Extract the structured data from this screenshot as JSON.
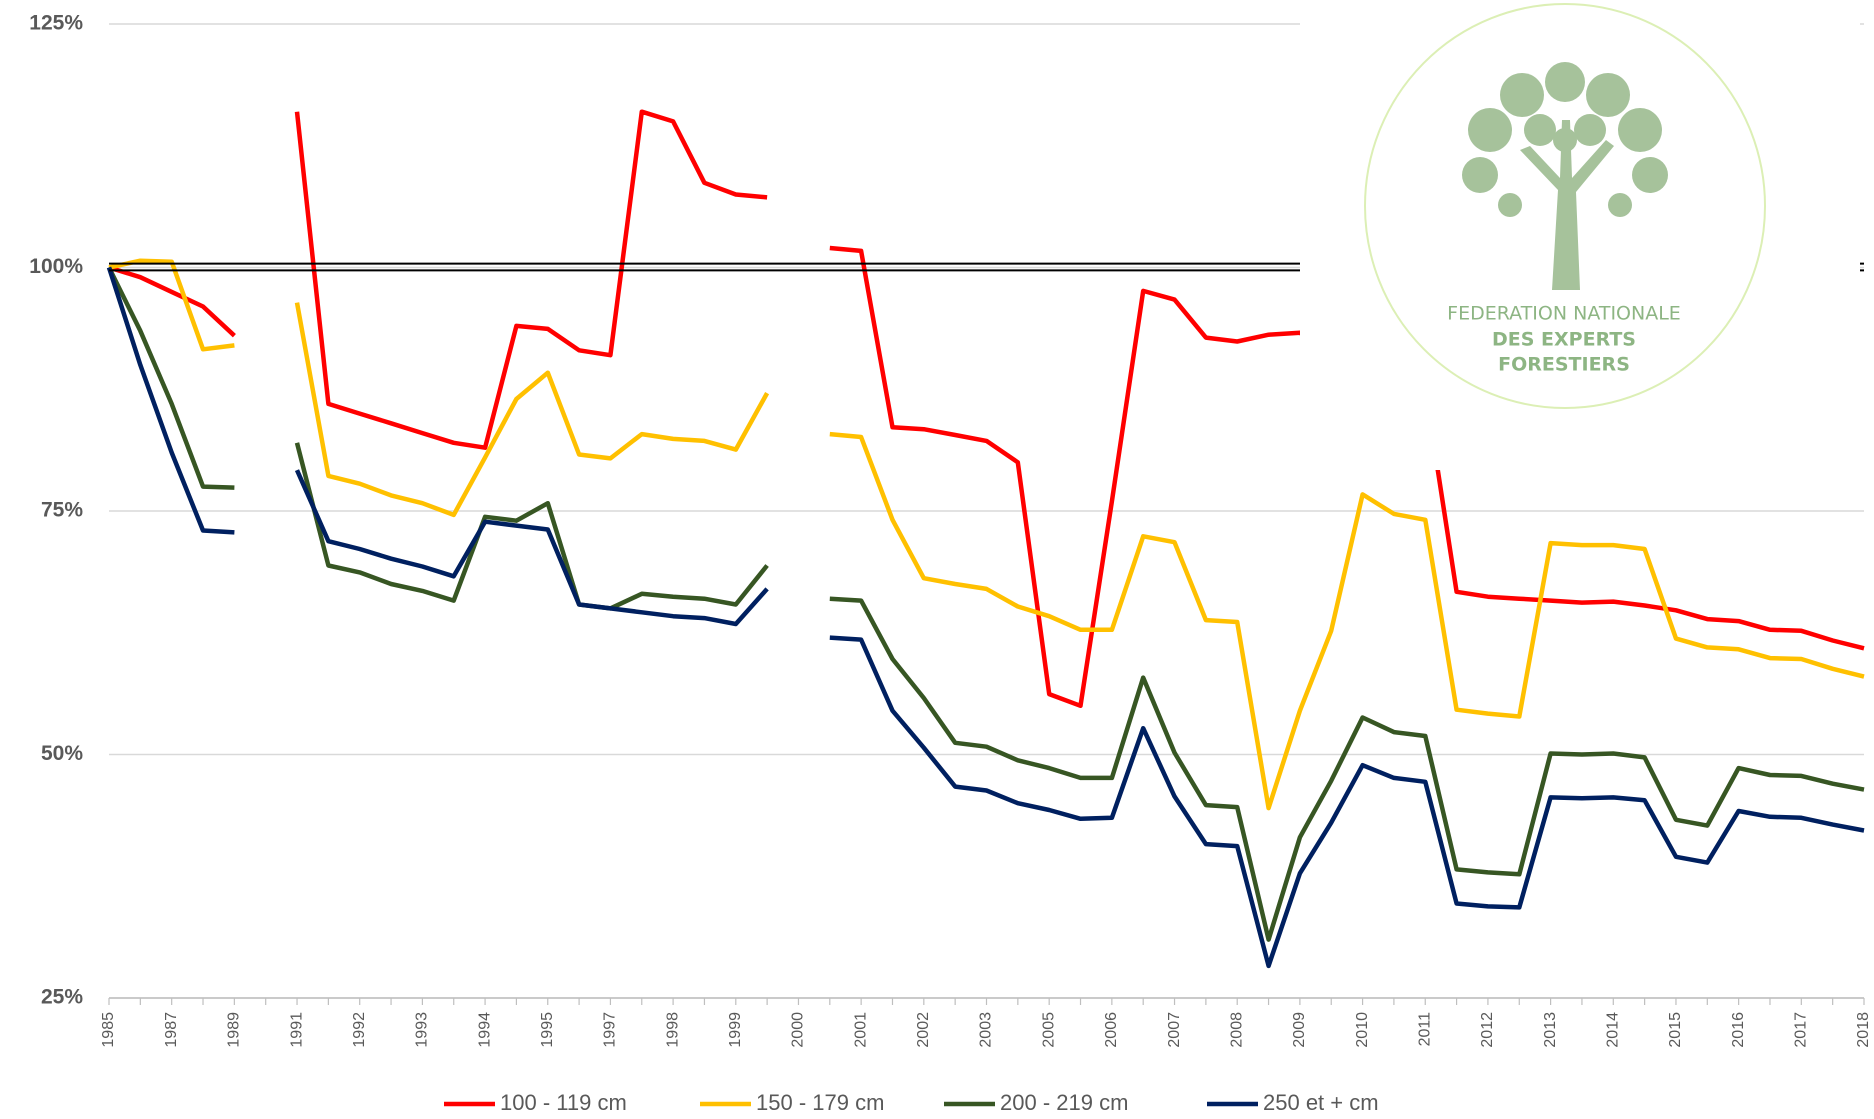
{
  "chart_data": {
    "type": "line",
    "categories": [
      "1985",
      null,
      "1987",
      null,
      "1989",
      null,
      "1991",
      null,
      "1992",
      null,
      "1993",
      null,
      "1994",
      null,
      "1995",
      null,
      "1997",
      null,
      "1998",
      null,
      "1999",
      null,
      "2000",
      null,
      "2001",
      null,
      "2002",
      null,
      "2003",
      null,
      "2005",
      null,
      "2006",
      null,
      "2007",
      null,
      "2008",
      null,
      "2009",
      null,
      "2010",
      null,
      "2011",
      null,
      "2012",
      null,
      "2013",
      null,
      "2014",
      null,
      "2015",
      null,
      "2016",
      null,
      "2017",
      null,
      "2018"
    ],
    "series": [
      {
        "name": "100 - 119 cm",
        "color": "#ff0000",
        "values": [
          100,
          99,
          97.5,
          96,
          93,
          null,
          116,
          86,
          85,
          84,
          83,
          82,
          81.5,
          94,
          93.7,
          91.5,
          91,
          116,
          115,
          108.7,
          107.5,
          107.2,
          null,
          102,
          101.7,
          83.6,
          83.4,
          82.8,
          82.2,
          80,
          56.2,
          55,
          76,
          97.6,
          96.7,
          92.8,
          92.4,
          93.1,
          93.3,
          91.2,
          90.7,
          88.2,
          87.5,
          66.7,
          66.2,
          66,
          65.8,
          65.6,
          65.7,
          65.3,
          64.8,
          63.9,
          63.7,
          62.8,
          62.7,
          61.7,
          60.9
        ]
      },
      {
        "name": "150 - 179 cm",
        "color": "#ffc000",
        "values": [
          100,
          100.7,
          100.6,
          91.6,
          92,
          null,
          96.4,
          78.6,
          77.8,
          76.6,
          75.8,
          74.6,
          80.5,
          86.5,
          89.2,
          80.8,
          80.4,
          82.9,
          82.4,
          82.2,
          81.3,
          87.1,
          null,
          82.9,
          82.6,
          74.1,
          68.1,
          67.5,
          67,
          65.2,
          64.2,
          62.8,
          62.8,
          72.4,
          71.8,
          63.8,
          63.6,
          44.5,
          54.5,
          62.7,
          76.7,
          74.7,
          74.1,
          54.6,
          54.2,
          53.9,
          71.7,
          71.5,
          71.5,
          71.1,
          61.9,
          61,
          60.8,
          59.9,
          59.8,
          58.8,
          58
        ]
      },
      {
        "name": "200 - 219 cm",
        "color": "#375623",
        "values": [
          100,
          93.5,
          86,
          77.5,
          77.4,
          null,
          82,
          69.4,
          68.7,
          67.5,
          66.8,
          65.8,
          74.4,
          74,
          75.8,
          65.4,
          65,
          66.5,
          66.2,
          66,
          65.4,
          69.4,
          null,
          66,
          65.8,
          59.8,
          55.8,
          51.2,
          50.8,
          49.4,
          48.6,
          47.6,
          47.6,
          57.9,
          50.2,
          44.8,
          44.6,
          31,
          41.5,
          47.3,
          53.8,
          52.3,
          51.9,
          38.2,
          37.9,
          37.7,
          50.1,
          50,
          50.1,
          49.7,
          43.3,
          42.7,
          48.6,
          47.9,
          47.8,
          47,
          46.4
        ]
      },
      {
        "name": "250 et + cm",
        "color": "#002060",
        "values": [
          100,
          90,
          81,
          73,
          72.8,
          null,
          79.2,
          71.9,
          71.1,
          70.1,
          69.3,
          68.3,
          73.9,
          73.5,
          73.1,
          65.4,
          65,
          64.6,
          64.2,
          64,
          63.4,
          67,
          null,
          62,
          61.8,
          54.5,
          50.7,
          46.7,
          46.3,
          45,
          44.3,
          43.4,
          43.5,
          52.7,
          45.7,
          40.8,
          40.6,
          28.3,
          37.8,
          43,
          48.9,
          47.6,
          47.2,
          34.7,
          34.4,
          34.3,
          45.6,
          45.5,
          45.6,
          45.3,
          39.5,
          38.9,
          44.2,
          43.6,
          43.5,
          42.8,
          42.2
        ]
      }
    ],
    "ylim": [
      25,
      125
    ],
    "yticks": [
      {
        "value": 25,
        "label": "25%"
      },
      {
        "value": 50,
        "label": "50%"
      },
      {
        "value": 75,
        "label": "75%"
      },
      {
        "value": 100,
        "label": "100%"
      },
      {
        "value": 125,
        "label": "125%"
      }
    ],
    "reference_lines": [
      100.4,
      99.7
    ],
    "grid": true,
    "legend": "bottom",
    "logo": {
      "lines": [
        "FEDERATION NATIONALE",
        "DES EXPERTS",
        "FORESTIERS"
      ]
    }
  }
}
